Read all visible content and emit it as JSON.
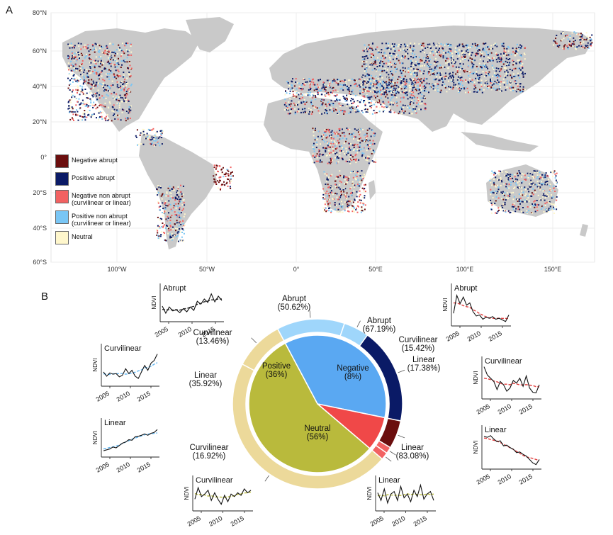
{
  "panel_a": {
    "letter": "A",
    "lat_labels": [
      "80°N",
      "60°N",
      "40°N",
      "20°N",
      "0°",
      "20°S",
      "40°S",
      "60°S"
    ],
    "lon_labels": [
      "100°W",
      "50°W",
      "0°",
      "50°E",
      "100°E",
      "150°E"
    ],
    "legend": [
      {
        "label": "Negative abrupt",
        "color": "#6b0e0e"
      },
      {
        "label": "Positive abrupt",
        "color": "#0a1a66"
      },
      {
        "label": "Negative non abrupt\n(curvilinear or linear)",
        "color": "#f26262"
      },
      {
        "label": "Positive non abrupt\n(curvilinear or linear)",
        "color": "#79c6f5"
      },
      {
        "label": "Neutral",
        "color": "#fff7cc"
      }
    ],
    "colors": {
      "land": "#c9c9c9",
      "grid": "#ececec"
    }
  },
  "panel_b": {
    "letter": "B",
    "inner": [
      {
        "name": "Positive",
        "pct": "(36%)",
        "value": 36,
        "color": "#5aa8f2"
      },
      {
        "name": "Negative",
        "pct": "(8%)",
        "value": 8,
        "color": "#f04848"
      },
      {
        "name": "Neutral",
        "pct": "(56%)",
        "value": 56,
        "color": "#b9ba3c"
      }
    ],
    "outer": [
      {
        "group": "Positive",
        "label": "Linear",
        "pct": "(35.92%)",
        "value": 35.92,
        "color": "#9fd6fb"
      },
      {
        "group": "Positive",
        "label": "Curvilinear",
        "pct": "(13.46%)",
        "value": 13.46,
        "color": "#9fd6fb"
      },
      {
        "group": "Positive",
        "label": "Abrupt",
        "pct": "(50.62%)",
        "value": 50.62,
        "color": "#0a1a66"
      },
      {
        "group": "Negative",
        "label": "Abrupt",
        "pct": "(67.19%)",
        "value": 67.19,
        "color": "#6b0e0e"
      },
      {
        "group": "Negative",
        "label": "Curvilinear",
        "pct": "(15.42%)",
        "value": 15.42,
        "color": "#f26262"
      },
      {
        "group": "Negative",
        "label": "Linear",
        "pct": "(17.38%)",
        "value": 17.38,
        "color": "#f26262"
      },
      {
        "group": "Neutral",
        "label": "Linear",
        "pct": "(83.08%)",
        "value": 83.08,
        "color": "#ecd99a"
      },
      {
        "group": "Neutral",
        "label": "Curvilinear",
        "pct": "(16.92%)",
        "value": 16.92,
        "color": "#ecd99a"
      }
    ],
    "mini_plots": [
      {
        "id": "pos-abrupt",
        "title": "Abrupt",
        "ylabel": "NDVI",
        "years": [
          "2005",
          "2010",
          "2015"
        ],
        "fit_color": "#2a2a2a",
        "series": [
          0.45,
          0.2,
          0.42,
          0.28,
          0.32,
          0.22,
          0.36,
          0.25,
          0.42,
          0.3,
          0.62,
          0.52,
          0.7,
          0.58,
          0.88,
          0.6,
          0.8,
          0.65
        ]
      },
      {
        "id": "pos-curvilinear",
        "title": "Curvilinear",
        "ylabel": "NDVI",
        "years": [
          "2005",
          "2010",
          "2015"
        ],
        "fit_color": "#5fb4f0",
        "series": [
          0.35,
          0.22,
          0.32,
          0.28,
          0.3,
          0.2,
          0.25,
          0.45,
          0.3,
          0.4,
          0.22,
          0.15,
          0.35,
          0.55,
          0.4,
          0.62,
          0.7,
          0.9
        ]
      },
      {
        "id": "pos-linear",
        "title": "Linear",
        "ylabel": "NDVI",
        "years": [
          "2005",
          "2010",
          "2015"
        ],
        "fit_color": "#5fb4f0",
        "series": [
          0.12,
          0.15,
          0.18,
          0.25,
          0.22,
          0.3,
          0.38,
          0.42,
          0.5,
          0.48,
          0.6,
          0.62,
          0.65,
          0.7,
          0.65,
          0.72,
          0.75,
          0.85
        ]
      },
      {
        "id": "neg-abrupt",
        "title": "Abrupt",
        "ylabel": "NDVI",
        "years": [
          "2005",
          "2010",
          "2015"
        ],
        "fit_color": "#e04040",
        "series": [
          0.3,
          0.85,
          0.6,
          0.8,
          0.55,
          0.62,
          0.35,
          0.22,
          0.25,
          0.12,
          0.18,
          0.15,
          0.2,
          0.12,
          0.15,
          0.1,
          0.05,
          0.25
        ]
      },
      {
        "id": "neg-curvilinear",
        "title": "Curvilinear",
        "ylabel": "NDVI",
        "years": [
          "2005",
          "2010",
          "2015"
        ],
        "fit_color": "#e04040",
        "series": [
          0.9,
          0.65,
          0.55,
          0.45,
          0.2,
          0.45,
          0.35,
          0.15,
          0.25,
          0.48,
          0.4,
          0.55,
          0.3,
          0.62,
          0.25,
          0.12,
          0.1,
          0.35
        ]
      },
      {
        "id": "neg-linear",
        "title": "Linear",
        "ylabel": "NDVI",
        "years": [
          "2005",
          "2010",
          "2015"
        ],
        "fit_color": "#e04040",
        "series": [
          0.88,
          0.85,
          0.9,
          0.8,
          0.72,
          0.75,
          0.6,
          0.62,
          0.55,
          0.5,
          0.4,
          0.42,
          0.35,
          0.3,
          0.2,
          0.1,
          0.05,
          0.2
        ]
      },
      {
        "id": "neu-curvilinear",
        "title": "Curvilinear",
        "ylabel": "NDVI",
        "years": [
          "2005",
          "2010",
          "2015"
        ],
        "fit_color": "#b9ba3c",
        "series": [
          0.35,
          0.8,
          0.45,
          0.55,
          0.7,
          0.3,
          0.6,
          0.35,
          0.15,
          0.5,
          0.25,
          0.55,
          0.45,
          0.6,
          0.5,
          0.75,
          0.6,
          0.7
        ]
      },
      {
        "id": "neu-linear",
        "title": "Linear",
        "ylabel": "NDVI",
        "years": [
          "2005",
          "2010",
          "2015"
        ],
        "fit_color": "#b9ba3c",
        "series": [
          0.6,
          0.3,
          0.75,
          0.2,
          0.55,
          0.65,
          0.3,
          0.85,
          0.4,
          0.55,
          0.25,
          0.7,
          0.45,
          0.9,
          0.35,
          0.55,
          0.65,
          0.3
        ]
      }
    ]
  }
}
